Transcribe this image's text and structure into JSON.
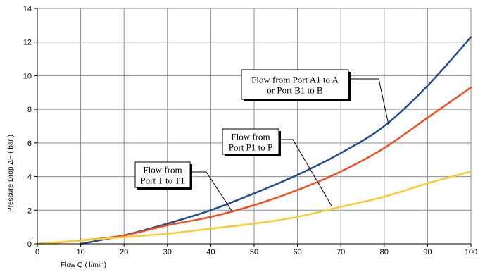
{
  "chart_data": {
    "type": "line",
    "title": "",
    "xlabel": "Flow  Q ( l/min)",
    "ylabel": "Pressure Drop ΔP ( bar )",
    "xlim": [
      0,
      100
    ],
    "ylim": [
      0,
      14
    ],
    "xticks": [
      0,
      10,
      20,
      30,
      40,
      50,
      60,
      70,
      80,
      90,
      100
    ],
    "yticks": [
      0,
      2,
      4,
      6,
      8,
      10,
      12,
      14
    ],
    "grid": true,
    "legend": "none",
    "series": [
      {
        "color": "#1f4e8c",
        "x": [
          10,
          20,
          30,
          40,
          50,
          60,
          70,
          80,
          90,
          100
        ],
        "y": [
          0.0,
          0.5,
          1.2,
          2.0,
          3.0,
          4.1,
          5.4,
          7.0,
          9.4,
          12.3
        ]
      },
      {
        "color": "#f04e23",
        "x": [
          0,
          10,
          20,
          30,
          40,
          50,
          60,
          70,
          80,
          90,
          100
        ],
        "y": [
          0.0,
          0.2,
          0.5,
          1.1,
          1.6,
          2.3,
          3.2,
          4.3,
          5.7,
          7.5,
          9.3
        ]
      },
      {
        "color": "#f7cc33",
        "x": [
          0,
          10,
          20,
          30,
          40,
          50,
          60,
          70,
          80,
          90,
          100
        ],
        "y": [
          0.0,
          0.2,
          0.4,
          0.6,
          0.9,
          1.2,
          1.6,
          2.2,
          2.8,
          3.6,
          4.3
        ]
      }
    ],
    "annotations": [
      {
        "lines": [
          "Flow from Port A1 to A",
          "or Port B1 to B"
        ],
        "target": [
          81,
          7.1
        ]
      },
      {
        "lines": [
          "Flow from",
          "Port P1 to P"
        ],
        "target": [
          68,
          2.2
        ]
      },
      {
        "lines": [
          "Flow from",
          "Port T to T1"
        ],
        "target": [
          45,
          1.9
        ]
      }
    ]
  }
}
